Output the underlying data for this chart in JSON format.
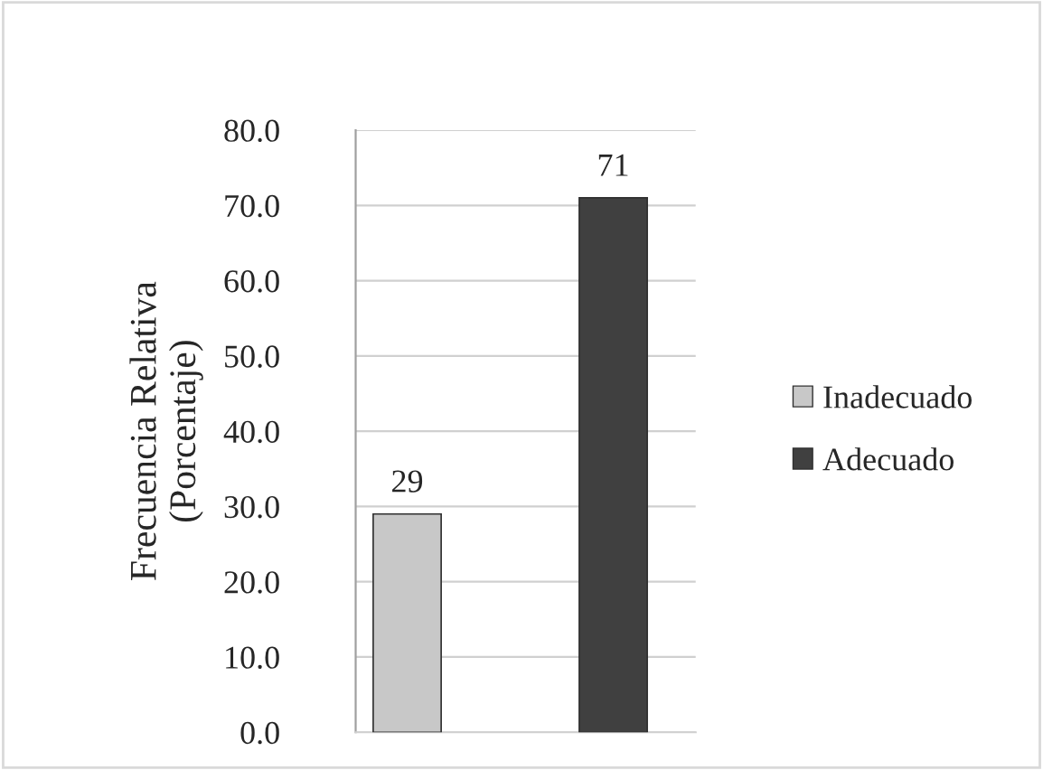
{
  "chart_data": {
    "type": "bar",
    "categories": [
      null,
      null
    ],
    "ylabel": "Frecuencia Relativa\n(Porcentaje)",
    "series": [
      {
        "name": "Inadecuado",
        "color": "#c8c8c8",
        "values": [
          29,
          null
        ]
      },
      {
        "name": "Adecuado",
        "color": "#404040",
        "values": [
          null,
          71
        ]
      }
    ],
    "ylim": [
      0,
      80
    ],
    "yticks": [
      {
        "value": 0,
        "label": "0.0"
      },
      {
        "value": 10,
        "label": "10.0"
      },
      {
        "value": 20,
        "label": "20.0"
      },
      {
        "value": 30,
        "label": "30.0"
      },
      {
        "value": 40,
        "label": "40.0"
      },
      {
        "value": 50,
        "label": "50.0"
      },
      {
        "value": 60,
        "label": "60.0"
      },
      {
        "value": 70,
        "label": "70.0"
      },
      {
        "value": 80,
        "label": "80.0"
      }
    ],
    "grid": "y",
    "legend": "right",
    "data_labels": true
  }
}
